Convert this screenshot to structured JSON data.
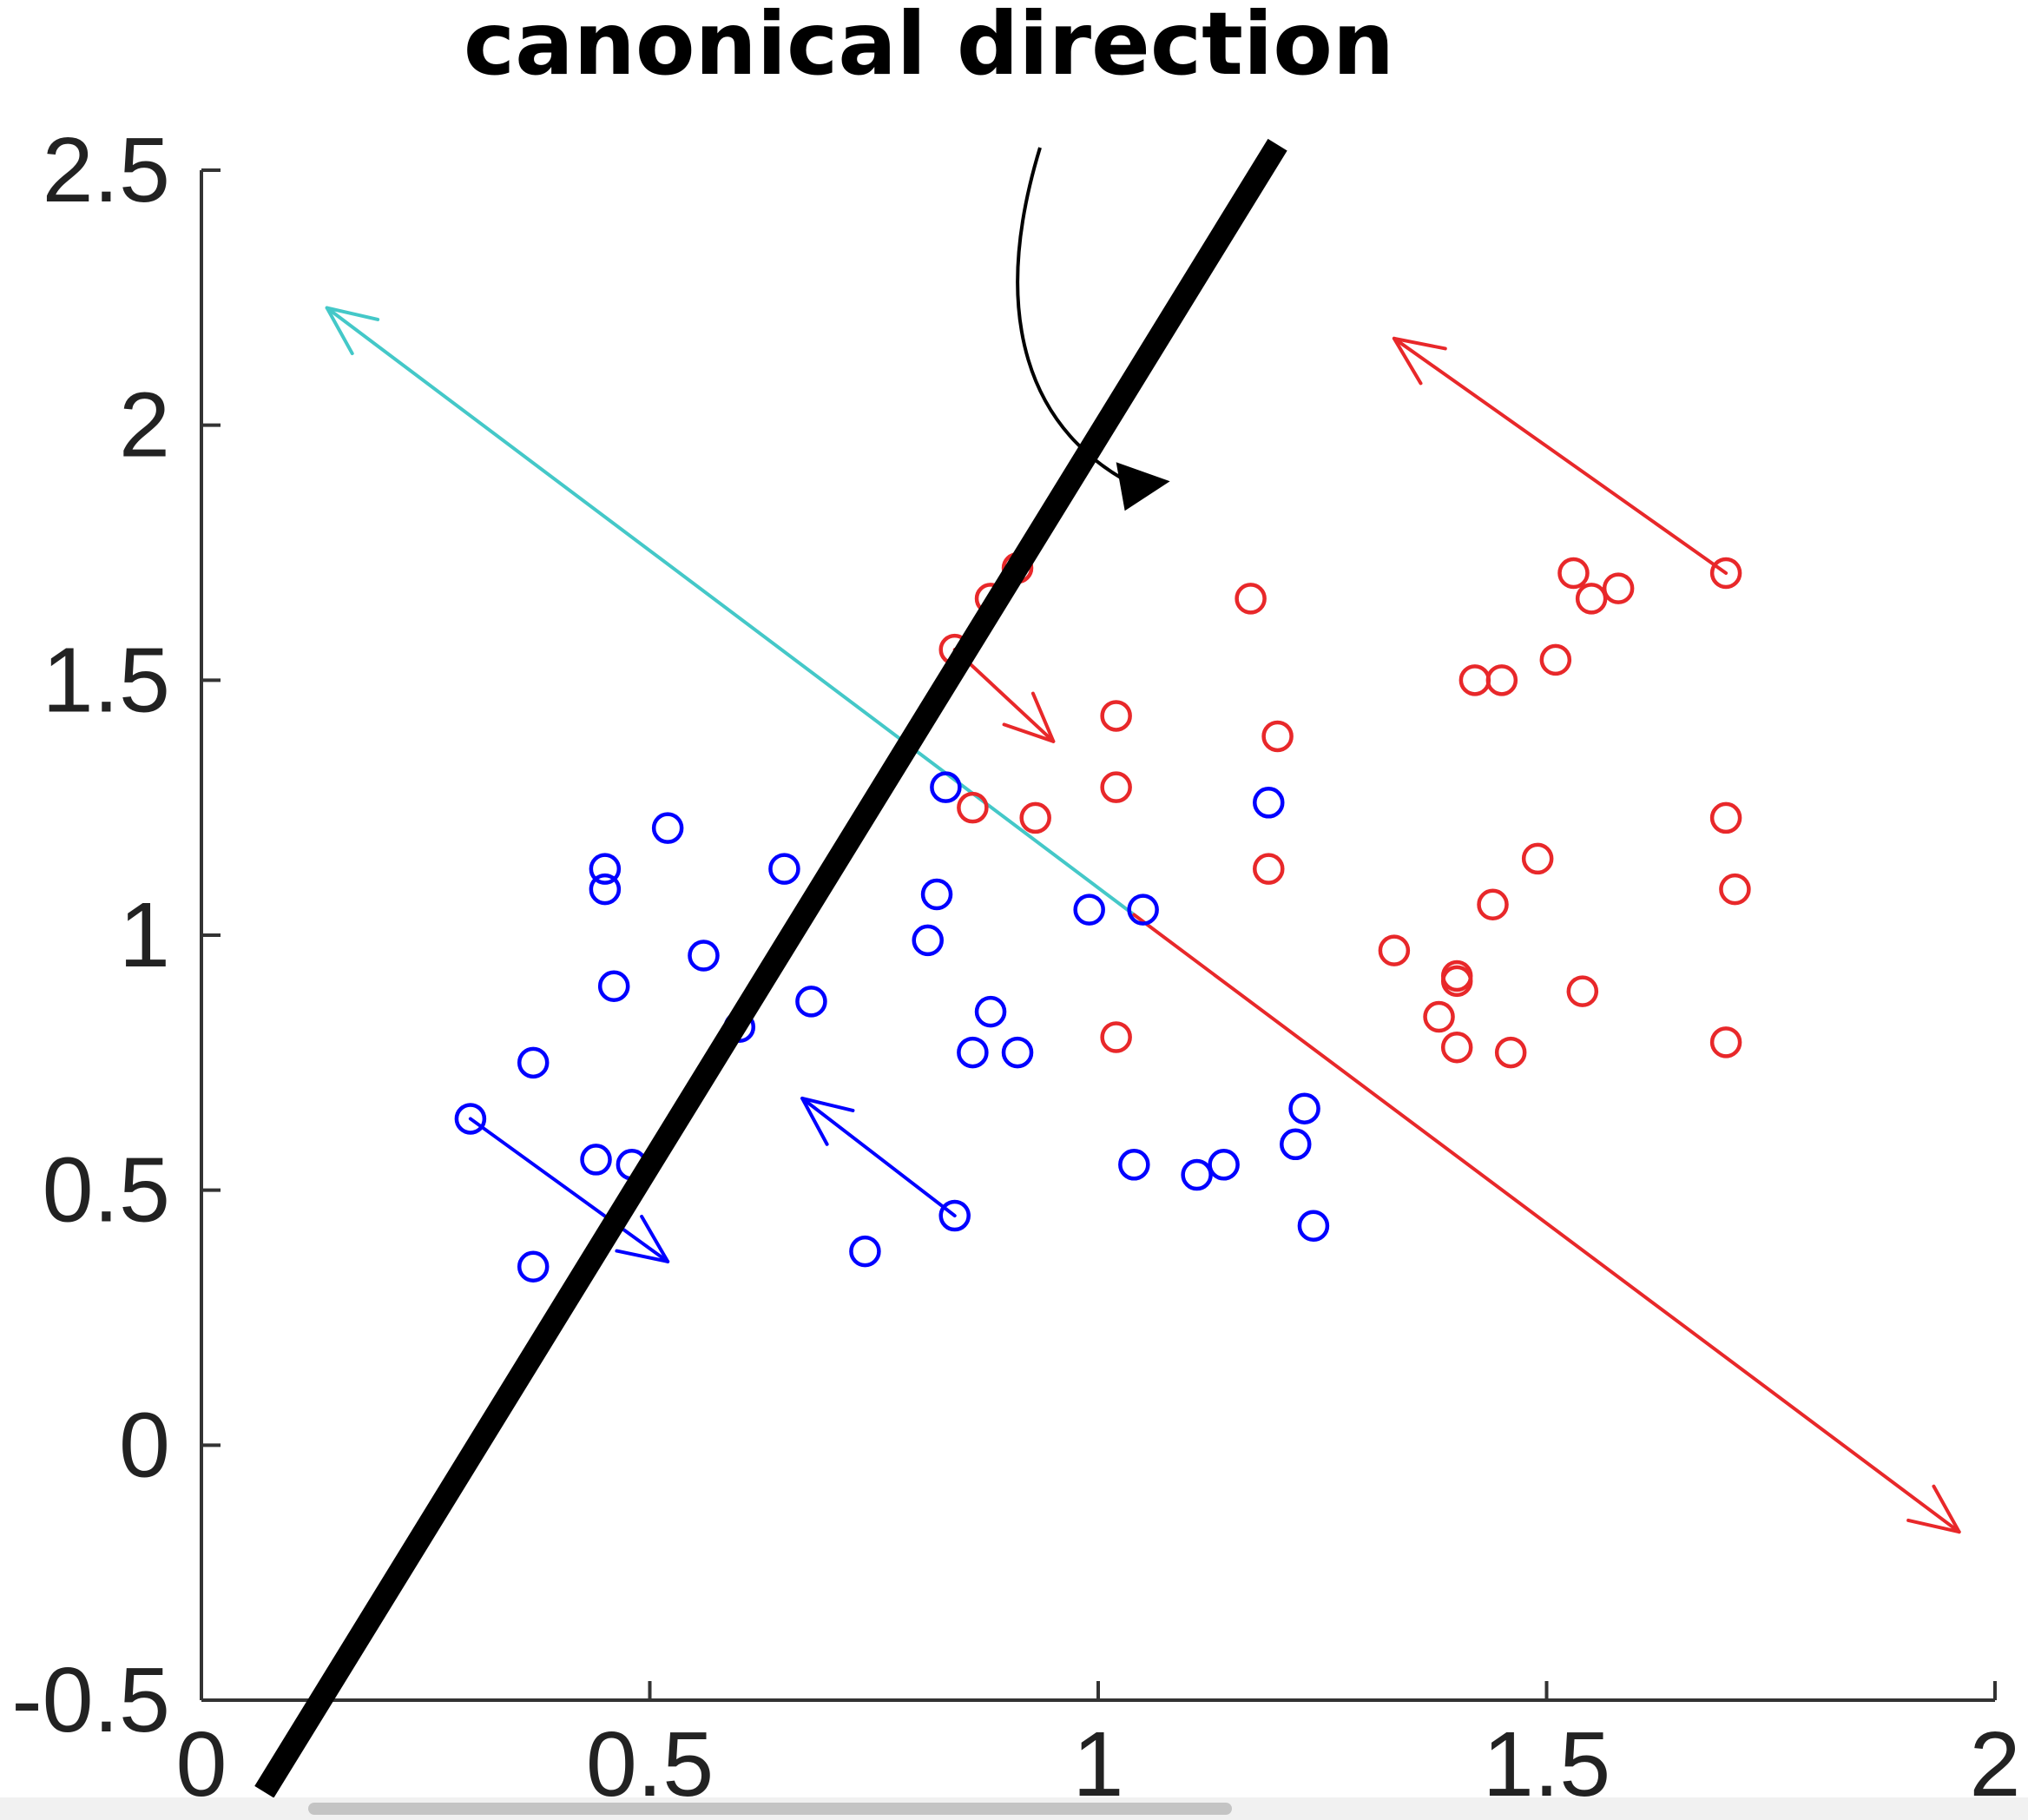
{
  "chart_data": {
    "type": "scatter",
    "title": "",
    "xlabel": "",
    "ylabel": "",
    "xlim": [
      0,
      2
    ],
    "ylim": [
      -0.5,
      2.5
    ],
    "x_ticks": [
      0,
      0.5,
      1,
      1.5,
      2
    ],
    "y_ticks": [
      -0.5,
      0,
      0.5,
      1,
      1.5,
      2,
      2.5
    ],
    "x_tick_labels": [
      "0",
      "0.5",
      "1",
      "1.5",
      "2"
    ],
    "y_tick_labels": [
      "-0.5",
      "0",
      "0.5",
      "1",
      "1.5",
      "2",
      "2.5"
    ],
    "grid": false,
    "box": "left-bottom axes only",
    "series": [
      {
        "color": "#0000ff",
        "marker": "circle-open",
        "points": [
          [
            0.3,
            0.64
          ],
          [
            0.37,
            0.35
          ],
          [
            0.37,
            0.75
          ],
          [
            0.44,
            0.56
          ],
          [
            0.45,
            1.13
          ],
          [
            0.45,
            1.09
          ],
          [
            0.46,
            0.9
          ],
          [
            0.48,
            0.55
          ],
          [
            0.52,
            1.21
          ],
          [
            0.56,
            0.96
          ],
          [
            0.6,
            0.82
          ],
          [
            0.65,
            1.13
          ],
          [
            0.68,
            0.87
          ],
          [
            0.74,
            0.38
          ],
          [
            0.81,
            0.99
          ],
          [
            0.82,
            1.08
          ],
          [
            0.83,
            1.29
          ],
          [
            0.84,
            0.45
          ],
          [
            0.86,
            0.77
          ],
          [
            0.88,
            0.85
          ],
          [
            0.91,
            0.77
          ],
          [
            0.99,
            1.05
          ],
          [
            1.04,
            0.55
          ],
          [
            1.05,
            1.05
          ],
          [
            1.11,
            0.53
          ],
          [
            1.14,
            0.55
          ],
          [
            1.19,
            1.26
          ],
          [
            1.22,
            0.59
          ],
          [
            1.23,
            0.66
          ],
          [
            1.24,
            0.43
          ]
        ]
      },
      {
        "color": "#e8282a",
        "marker": "circle-open",
        "points": [
          [
            0.84,
            1.56
          ],
          [
            0.86,
            1.25
          ],
          [
            0.88,
            1.66
          ],
          [
            0.91,
            1.72
          ],
          [
            0.93,
            1.23
          ],
          [
            1.02,
            1.43
          ],
          [
            1.02,
            1.29
          ],
          [
            1.02,
            0.8
          ],
          [
            1.17,
            1.66
          ],
          [
            1.19,
            1.13
          ],
          [
            1.2,
            1.39
          ],
          [
            1.33,
            0.97
          ],
          [
            1.38,
            0.84
          ],
          [
            1.4,
            0.78
          ],
          [
            1.4,
            0.92
          ],
          [
            1.4,
            0.91
          ],
          [
            1.42,
            1.5
          ],
          [
            1.44,
            1.06
          ],
          [
            1.46,
            0.77
          ],
          [
            1.45,
            1.5
          ],
          [
            1.49,
            1.15
          ],
          [
            1.51,
            1.54
          ],
          [
            1.53,
            1.71
          ],
          [
            1.54,
            0.89
          ],
          [
            1.55,
            1.66
          ],
          [
            1.58,
            1.68
          ],
          [
            1.7,
            1.71
          ],
          [
            1.7,
            1.23
          ],
          [
            1.7,
            0.79
          ],
          [
            1.71,
            1.09
          ]
        ]
      }
    ],
    "lines": [
      {
        "name": "canonical direction",
        "color": "#000000",
        "from": [
          0.07,
          -0.68
        ],
        "to": [
          1.2,
          2.55
        ]
      }
    ],
    "arrows": [
      {
        "color": "#44c8c8",
        "from": [
          1.04,
          1.04
        ],
        "to": [
          0.14,
          2.23
        ]
      },
      {
        "color": "#e8282a",
        "from": [
          1.04,
          1.04
        ],
        "to": [
          1.96,
          -0.17
        ]
      },
      {
        "color": "#e8282a",
        "from": [
          1.7,
          1.71
        ],
        "to": [
          1.33,
          2.17
        ]
      },
      {
        "color": "#e8282a",
        "from": [
          0.84,
          1.56
        ],
        "to": [
          0.95,
          1.38
        ]
      },
      {
        "color": "#0000ff",
        "from": [
          0.3,
          0.64
        ],
        "to": [
          0.52,
          0.36
        ]
      },
      {
        "color": "#0000ff",
        "from": [
          0.84,
          0.45
        ],
        "to": [
          0.67,
          0.68
        ]
      }
    ],
    "annotations": [
      {
        "text": "canonical direction",
        "pointer_color": "#000000",
        "pointer_target": [
          1.08,
          1.89
        ]
      }
    ]
  }
}
